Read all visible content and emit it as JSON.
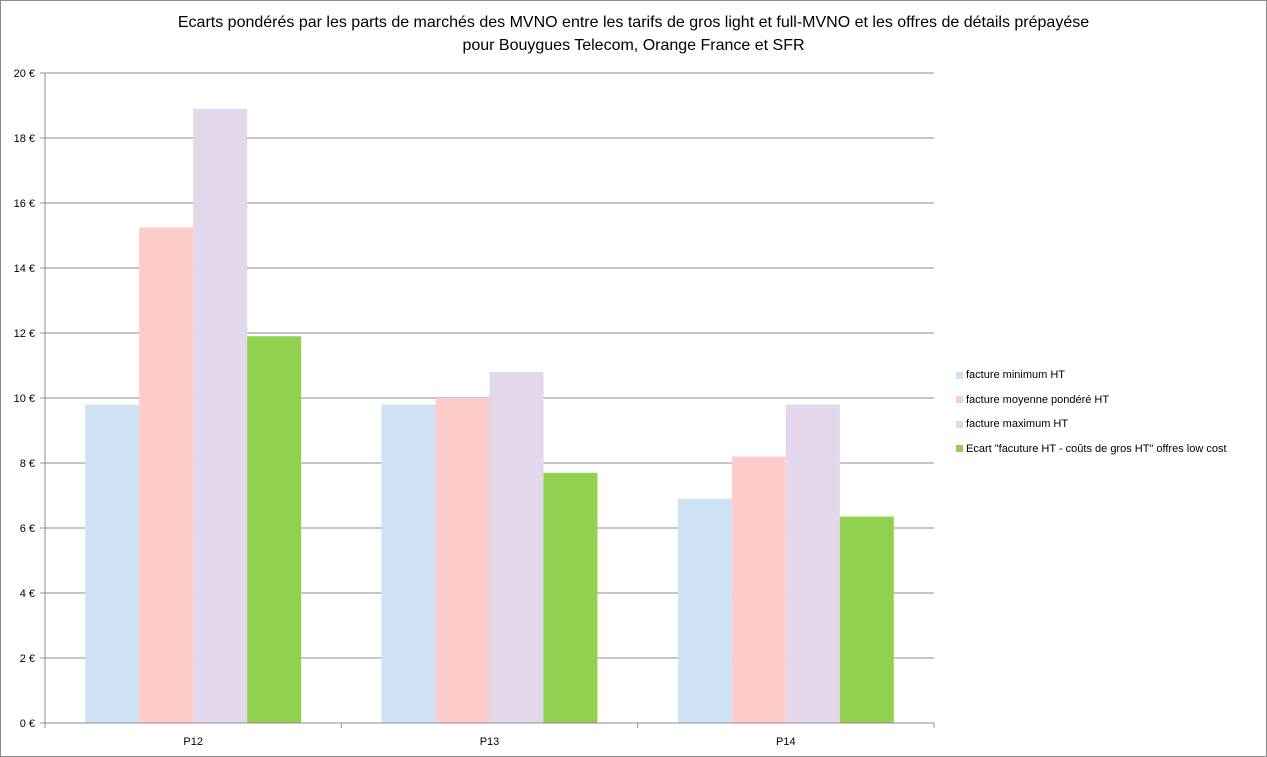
{
  "chart_data": {
    "type": "bar",
    "title_lines": [
      "Ecarts pondérés par les parts de marchés des MVNO entre les tarifs de gros light et full-MVNO et les offres de détails prépayése",
      "pour Bouygues Telecom, Orange France et SFR"
    ],
    "categories": [
      "P12",
      "P13",
      "P14"
    ],
    "series": [
      {
        "name": "facture minimum HT",
        "color": "#cfe2f3",
        "values": [
          9.8,
          9.8,
          6.9
        ]
      },
      {
        "name": "facture moyenne pondéré HT",
        "color": "#ffcccc",
        "values": [
          15.25,
          10.0,
          8.2
        ]
      },
      {
        "name": "facture maximum HT",
        "color": "#e2d7eb",
        "values": [
          18.9,
          10.8,
          9.8
        ]
      },
      {
        "name": "Ecart \"facuture HT - coûts de gros HT\" offres low cost",
        "color": "#92d050",
        "values": [
          11.9,
          7.7,
          6.35
        ]
      }
    ],
    "ylim": [
      0,
      20
    ],
    "yticks": [
      0,
      2,
      4,
      6,
      8,
      10,
      12,
      14,
      16,
      18,
      20
    ],
    "ytick_labels": [
      "0 €",
      "2 €",
      "4 €",
      "6 €",
      "8 €",
      "10 €",
      "12 €",
      "14 €",
      "16 €",
      "18 €",
      "20 €"
    ],
    "grid": true,
    "legend_position": "right"
  }
}
